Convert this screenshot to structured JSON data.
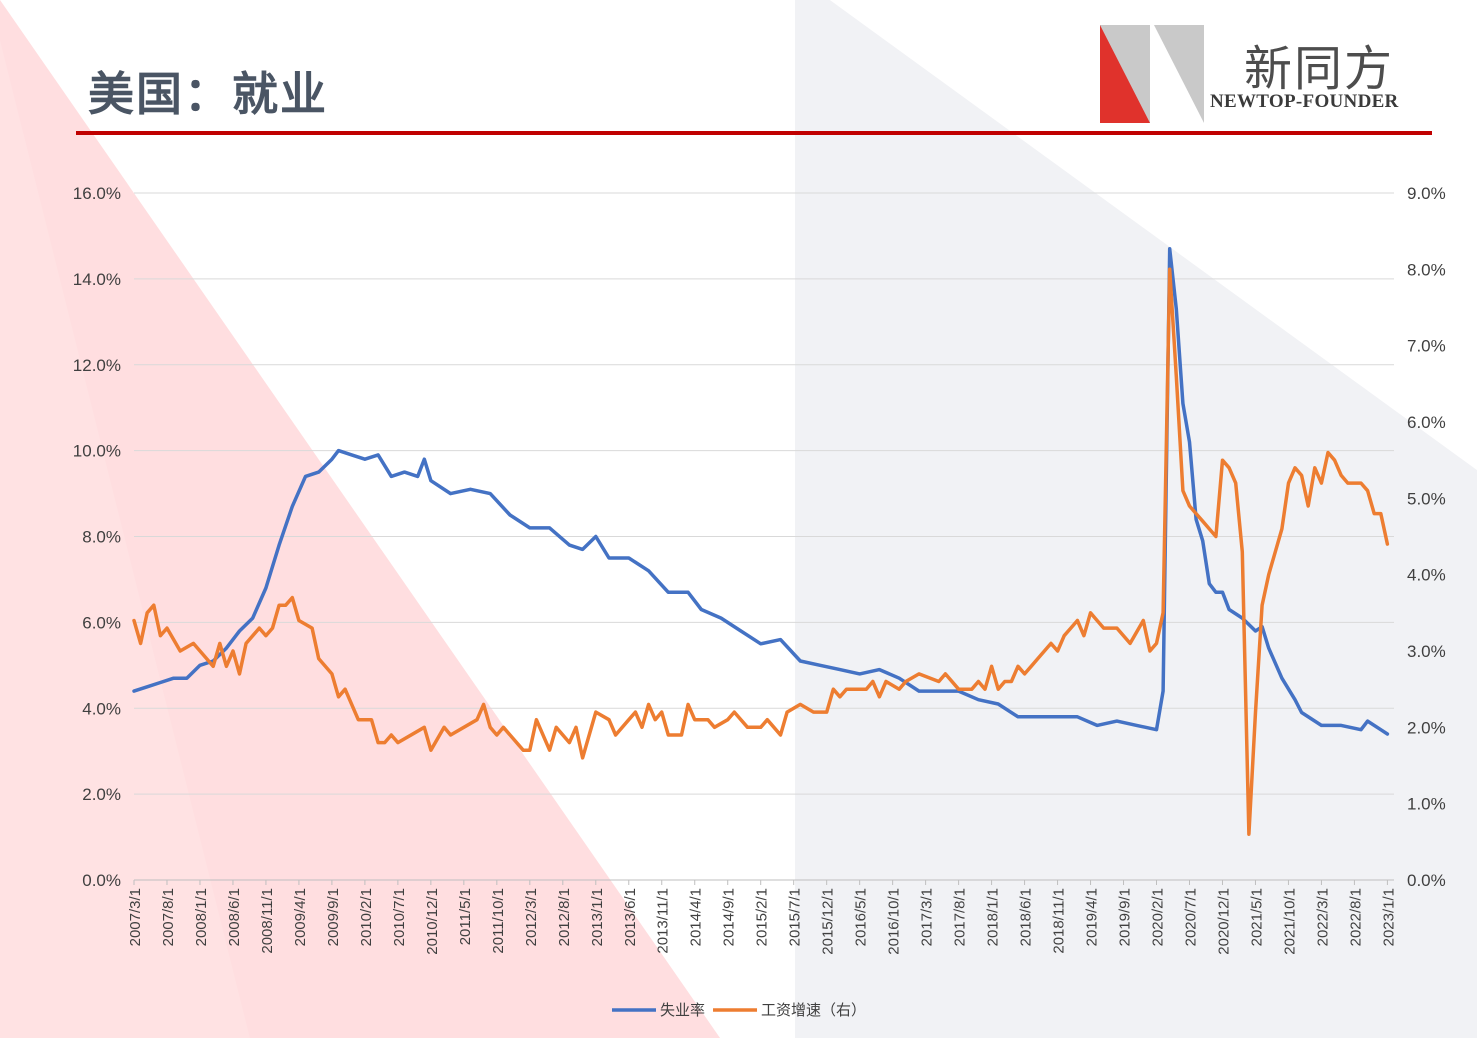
{
  "page": {
    "title": "美国：就业",
    "logo_cn": "新同方",
    "logo_en": "NEWTOP-FOUNDER",
    "colors": {
      "accent": "#c00000",
      "series1": "#4472c4",
      "series2": "#ed7d31"
    }
  },
  "chart_data": {
    "type": "line",
    "x_tick_labels": [
      "2007/3/1",
      "2007/8/1",
      "2008/1/1",
      "2008/6/1",
      "2008/11/1",
      "2009/4/1",
      "2009/9/1",
      "2010/2/1",
      "2010/7/1",
      "2010/12/1",
      "2011/5/1",
      "2011/10/1",
      "2012/3/1",
      "2012/8/1",
      "2013/1/1",
      "2013/6/1",
      "2013/11/1",
      "2014/4/1",
      "2014/9/1",
      "2015/2/1",
      "2015/7/1",
      "2015/12/1",
      "2016/5/1",
      "2016/10/1",
      "2017/3/1",
      "2017/8/1",
      "2018/1/1",
      "2018/6/1",
      "2018/11/1",
      "2019/4/1",
      "2019/9/1",
      "2020/2/1",
      "2020/7/1",
      "2020/12/1",
      "2021/5/1",
      "2021/10/1",
      "2022/3/1",
      "2022/8/1",
      "2023/1/1"
    ],
    "x_range": [
      "2007/3/1",
      "2023/2/1"
    ],
    "y_left": {
      "ticks": [
        "0.0%",
        "2.0%",
        "4.0%",
        "6.0%",
        "8.0%",
        "10.0%",
        "12.0%",
        "14.0%",
        "16.0%"
      ],
      "lim": [
        0,
        16
      ]
    },
    "y_right": {
      "ticks": [
        "0.0%",
        "1.0%",
        "2.0%",
        "3.0%",
        "4.0%",
        "5.0%",
        "6.0%",
        "7.0%",
        "8.0%",
        "9.0%"
      ],
      "lim": [
        0,
        9
      ]
    },
    "grid": true,
    "legend_position": "bottom",
    "series": [
      {
        "name": "失业率",
        "axis": "left",
        "color": "#4472c4",
        "points": [
          [
            "2007/3/1",
            4.4
          ],
          [
            "2007/5/1",
            4.5
          ],
          [
            "2007/7/1",
            4.6
          ],
          [
            "2007/9/1",
            4.7
          ],
          [
            "2007/11/1",
            4.7
          ],
          [
            "2008/1/1",
            5.0
          ],
          [
            "2008/3/1",
            5.1
          ],
          [
            "2008/5/1",
            5.4
          ],
          [
            "2008/7/1",
            5.8
          ],
          [
            "2008/9/1",
            6.1
          ],
          [
            "2008/11/1",
            6.8
          ],
          [
            "2009/1/1",
            7.8
          ],
          [
            "2009/3/1",
            8.7
          ],
          [
            "2009/5/1",
            9.4
          ],
          [
            "2009/7/1",
            9.5
          ],
          [
            "2009/9/1",
            9.8
          ],
          [
            "2009/10/1",
            10.0
          ],
          [
            "2009/12/1",
            9.9
          ],
          [
            "2010/2/1",
            9.8
          ],
          [
            "2010/4/1",
            9.9
          ],
          [
            "2010/6/1",
            9.4
          ],
          [
            "2010/8/1",
            9.5
          ],
          [
            "2010/10/1",
            9.4
          ],
          [
            "2010/11/1",
            9.8
          ],
          [
            "2010/12/1",
            9.3
          ],
          [
            "2011/3/1",
            9.0
          ],
          [
            "2011/6/1",
            9.1
          ],
          [
            "2011/9/1",
            9.0
          ],
          [
            "2011/12/1",
            8.5
          ],
          [
            "2012/3/1",
            8.2
          ],
          [
            "2012/6/1",
            8.2
          ],
          [
            "2012/9/1",
            7.8
          ],
          [
            "2012/11/1",
            7.7
          ],
          [
            "2013/1/1",
            8.0
          ],
          [
            "2013/3/1",
            7.5
          ],
          [
            "2013/6/1",
            7.5
          ],
          [
            "2013/9/1",
            7.2
          ],
          [
            "2013/12/1",
            6.7
          ],
          [
            "2014/3/1",
            6.7
          ],
          [
            "2014/5/1",
            6.3
          ],
          [
            "2014/8/1",
            6.1
          ],
          [
            "2014/11/1",
            5.8
          ],
          [
            "2015/2/1",
            5.5
          ],
          [
            "2015/5/1",
            5.6
          ],
          [
            "2015/8/1",
            5.1
          ],
          [
            "2015/11/1",
            5.0
          ],
          [
            "2016/2/1",
            4.9
          ],
          [
            "2016/5/1",
            4.8
          ],
          [
            "2016/8/1",
            4.9
          ],
          [
            "2016/11/1",
            4.7
          ],
          [
            "2017/2/1",
            4.4
          ],
          [
            "2017/5/1",
            4.4
          ],
          [
            "2017/8/1",
            4.4
          ],
          [
            "2017/11/1",
            4.2
          ],
          [
            "2018/2/1",
            4.1
          ],
          [
            "2018/5/1",
            3.8
          ],
          [
            "2018/8/1",
            3.8
          ],
          [
            "2018/11/1",
            3.8
          ],
          [
            "2019/2/1",
            3.8
          ],
          [
            "2019/5/1",
            3.6
          ],
          [
            "2019/8/1",
            3.7
          ],
          [
            "2019/11/1",
            3.6
          ],
          [
            "2020/2/1",
            3.5
          ],
          [
            "2020/3/1",
            4.4
          ],
          [
            "2020/4/1",
            14.7
          ],
          [
            "2020/5/1",
            13.3
          ],
          [
            "2020/6/1",
            11.1
          ],
          [
            "2020/7/1",
            10.2
          ],
          [
            "2020/8/1",
            8.4
          ],
          [
            "2020/9/1",
            7.9
          ],
          [
            "2020/10/1",
            6.9
          ],
          [
            "2020/11/1",
            6.7
          ],
          [
            "2020/12/1",
            6.7
          ],
          [
            "2021/1/1",
            6.3
          ],
          [
            "2021/3/1",
            6.1
          ],
          [
            "2021/5/1",
            5.8
          ],
          [
            "2021/6/1",
            5.9
          ],
          [
            "2021/7/1",
            5.4
          ],
          [
            "2021/9/1",
            4.7
          ],
          [
            "2021/11/1",
            4.2
          ],
          [
            "2021/12/1",
            3.9
          ],
          [
            "2022/3/1",
            3.6
          ],
          [
            "2022/6/1",
            3.6
          ],
          [
            "2022/9/1",
            3.5
          ],
          [
            "2022/10/1",
            3.7
          ],
          [
            "2022/12/1",
            3.5
          ],
          [
            "2023/1/1",
            3.4
          ]
        ]
      },
      {
        "name": "工资增速（右）",
        "axis": "right",
        "color": "#ed7d31",
        "points": [
          [
            "2007/3/1",
            3.4
          ],
          [
            "2007/4/1",
            3.1
          ],
          [
            "2007/5/1",
            3.5
          ],
          [
            "2007/6/1",
            3.6
          ],
          [
            "2007/7/1",
            3.2
          ],
          [
            "2007/8/1",
            3.3
          ],
          [
            "2007/10/1",
            3.0
          ],
          [
            "2007/12/1",
            3.1
          ],
          [
            "2008/2/1",
            2.9
          ],
          [
            "2008/3/1",
            2.8
          ],
          [
            "2008/4/1",
            3.1
          ],
          [
            "2008/5/1",
            2.8
          ],
          [
            "2008/6/1",
            3.0
          ],
          [
            "2008/7/1",
            2.7
          ],
          [
            "2008/8/1",
            3.1
          ],
          [
            "2008/10/1",
            3.3
          ],
          [
            "2008/11/1",
            3.2
          ],
          [
            "2008/12/1",
            3.3
          ],
          [
            "2009/1/1",
            3.6
          ],
          [
            "2009/2/1",
            3.6
          ],
          [
            "2009/3/1",
            3.7
          ],
          [
            "2009/4/1",
            3.4
          ],
          [
            "2009/6/1",
            3.3
          ],
          [
            "2009/7/1",
            2.9
          ],
          [
            "2009/9/1",
            2.7
          ],
          [
            "2009/10/1",
            2.4
          ],
          [
            "2009/11/1",
            2.5
          ],
          [
            "2010/1/1",
            2.1
          ],
          [
            "2010/3/1",
            2.1
          ],
          [
            "2010/4/1",
            1.8
          ],
          [
            "2010/5/1",
            1.8
          ],
          [
            "2010/6/1",
            1.9
          ],
          [
            "2010/7/1",
            1.8
          ],
          [
            "2010/11/1",
            2.0
          ],
          [
            "2010/12/1",
            1.7
          ],
          [
            "2011/2/1",
            2.0
          ],
          [
            "2011/3/1",
            1.9
          ],
          [
            "2011/7/1",
            2.1
          ],
          [
            "2011/8/1",
            2.3
          ],
          [
            "2011/9/1",
            2.0
          ],
          [
            "2011/10/1",
            1.9
          ],
          [
            "2011/11/1",
            2.0
          ],
          [
            "2012/2/1",
            1.7
          ],
          [
            "2012/3/1",
            1.7
          ],
          [
            "2012/4/1",
            2.1
          ],
          [
            "2012/6/1",
            1.7
          ],
          [
            "2012/7/1",
            2.0
          ],
          [
            "2012/9/1",
            1.8
          ],
          [
            "2012/10/1",
            2.0
          ],
          [
            "2012/11/1",
            1.6
          ],
          [
            "2013/1/1",
            2.2
          ],
          [
            "2013/3/1",
            2.1
          ],
          [
            "2013/4/1",
            1.9
          ],
          [
            "2013/6/1",
            2.1
          ],
          [
            "2013/7/1",
            2.2
          ],
          [
            "2013/8/1",
            2.0
          ],
          [
            "2013/9/1",
            2.3
          ],
          [
            "2013/10/1",
            2.1
          ],
          [
            "2013/11/1",
            2.2
          ],
          [
            "2013/12/1",
            1.9
          ],
          [
            "2014/2/1",
            1.9
          ],
          [
            "2014/3/1",
            2.3
          ],
          [
            "2014/4/1",
            2.1
          ],
          [
            "2014/6/1",
            2.1
          ],
          [
            "2014/7/1",
            2.0
          ],
          [
            "2014/9/1",
            2.1
          ],
          [
            "2014/10/1",
            2.2
          ],
          [
            "2014/12/1",
            2.0
          ],
          [
            "2015/2/1",
            2.0
          ],
          [
            "2015/3/1",
            2.1
          ],
          [
            "2015/4/1",
            2.0
          ],
          [
            "2015/5/1",
            1.9
          ],
          [
            "2015/6/1",
            2.2
          ],
          [
            "2015/8/1",
            2.3
          ],
          [
            "2015/10/1",
            2.2
          ],
          [
            "2015/12/1",
            2.2
          ],
          [
            "2016/1/1",
            2.5
          ],
          [
            "2016/2/1",
            2.4
          ],
          [
            "2016/3/1",
            2.5
          ],
          [
            "2016/6/1",
            2.5
          ],
          [
            "2016/7/1",
            2.6
          ],
          [
            "2016/8/1",
            2.4
          ],
          [
            "2016/9/1",
            2.6
          ],
          [
            "2016/11/1",
            2.5
          ],
          [
            "2016/12/1",
            2.6
          ],
          [
            "2017/2/1",
            2.7
          ],
          [
            "2017/5/1",
            2.6
          ],
          [
            "2017/6/1",
            2.7
          ],
          [
            "2017/8/1",
            2.5
          ],
          [
            "2017/10/1",
            2.5
          ],
          [
            "2017/11/1",
            2.6
          ],
          [
            "2017/12/1",
            2.5
          ],
          [
            "2018/1/1",
            2.8
          ],
          [
            "2018/2/1",
            2.5
          ],
          [
            "2018/3/1",
            2.6
          ],
          [
            "2018/4/1",
            2.6
          ],
          [
            "2018/5/1",
            2.8
          ],
          [
            "2018/6/1",
            2.7
          ],
          [
            "2018/7/1",
            2.8
          ],
          [
            "2018/8/1",
            2.9
          ],
          [
            "2018/10/1",
            3.1
          ],
          [
            "2018/11/1",
            3.0
          ],
          [
            "2018/12/1",
            3.2
          ],
          [
            "2019/1/1",
            3.3
          ],
          [
            "2019/2/1",
            3.4
          ],
          [
            "2019/3/1",
            3.2
          ],
          [
            "2019/4/1",
            3.5
          ],
          [
            "2019/5/1",
            3.4
          ],
          [
            "2019/6/1",
            3.3
          ],
          [
            "2019/8/1",
            3.3
          ],
          [
            "2019/10/1",
            3.1
          ],
          [
            "2019/12/1",
            3.4
          ],
          [
            "2020/1/1",
            3.0
          ],
          [
            "2020/2/1",
            3.1
          ],
          [
            "2020/3/1",
            3.5
          ],
          [
            "2020/4/1",
            8.0
          ],
          [
            "2020/5/1",
            6.6
          ],
          [
            "2020/6/1",
            5.1
          ],
          [
            "2020/7/1",
            4.9
          ],
          [
            "2020/8/1",
            4.8
          ],
          [
            "2020/9/1",
            4.7
          ],
          [
            "2020/10/1",
            4.6
          ],
          [
            "2020/11/1",
            4.5
          ],
          [
            "2020/12/1",
            5.5
          ],
          [
            "2021/1/1",
            5.4
          ],
          [
            "2021/2/1",
            5.2
          ],
          [
            "2021/3/1",
            4.3
          ],
          [
            "2021/4/1",
            0.6
          ],
          [
            "2021/5/1",
            2.2
          ],
          [
            "2021/6/1",
            3.6
          ],
          [
            "2021/7/1",
            4.0
          ],
          [
            "2021/8/1",
            4.3
          ],
          [
            "2021/9/1",
            4.6
          ],
          [
            "2021/10/1",
            5.2
          ],
          [
            "2021/11/1",
            5.4
          ],
          [
            "2021/12/1",
            5.3
          ],
          [
            "2022/1/1",
            4.9
          ],
          [
            "2022/2/1",
            5.4
          ],
          [
            "2022/3/1",
            5.2
          ],
          [
            "2022/4/1",
            5.6
          ],
          [
            "2022/5/1",
            5.5
          ],
          [
            "2022/6/1",
            5.3
          ],
          [
            "2022/7/1",
            5.2
          ],
          [
            "2022/9/1",
            5.2
          ],
          [
            "2022/10/1",
            5.1
          ],
          [
            "2022/11/1",
            4.8
          ],
          [
            "2022/12/1",
            4.8
          ],
          [
            "2023/1/1",
            4.4
          ]
        ]
      }
    ]
  }
}
